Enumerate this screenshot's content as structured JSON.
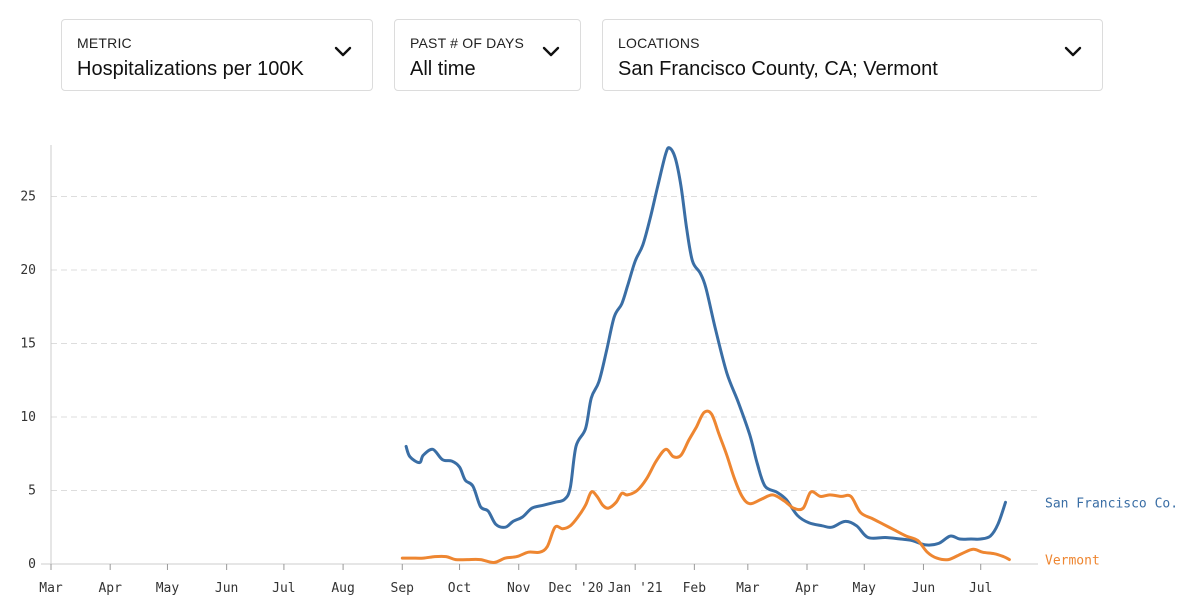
{
  "controls": {
    "metric": {
      "label": "METRIC",
      "value": "Hospitalizations per 100K"
    },
    "days": {
      "label": "PAST # OF DAYS",
      "value": "All time"
    },
    "locations": {
      "label": "LOCATIONS",
      "value": "San Francisco County, CA; Vermont"
    }
  },
  "colors": {
    "sf": "#3a6ea5",
    "vermont": "#ee8631",
    "grid": "#dddddd",
    "axis": "#cccccc"
  },
  "chart_data": {
    "type": "line",
    "title": "",
    "xlabel": "",
    "ylabel": "",
    "ylim": [
      0,
      28.5
    ],
    "yticks": [
      0,
      5,
      10,
      15,
      20,
      25
    ],
    "grid": true,
    "legend": "end-of-line labels",
    "x_ticks": [
      {
        "label": "Mar",
        "date": "2020-03-01"
      },
      {
        "label": "Apr",
        "date": "2020-04-01"
      },
      {
        "label": "May",
        "date": "2020-05-01"
      },
      {
        "label": "Jun",
        "date": "2020-06-01"
      },
      {
        "label": "Jul",
        "date": "2020-07-01"
      },
      {
        "label": "Aug",
        "date": "2020-08-01"
      },
      {
        "label": "Sep",
        "date": "2020-09-01"
      },
      {
        "label": "Oct",
        "date": "2020-10-01"
      },
      {
        "label": "Nov",
        "date": "2020-11-01"
      },
      {
        "label": "Dec '20",
        "date": "2020-12-01"
      },
      {
        "label": "Jan '21",
        "date": "2021-01-01"
      },
      {
        "label": "Feb",
        "date": "2021-02-01"
      },
      {
        "label": "Mar",
        "date": "2021-03-01"
      },
      {
        "label": "Apr",
        "date": "2021-04-01"
      },
      {
        "label": "May",
        "date": "2021-05-01"
      },
      {
        "label": "Jun",
        "date": "2021-06-01"
      },
      {
        "label": "Jul",
        "date": "2021-07-01"
      }
    ],
    "series": [
      {
        "name": "San Francisco Co.",
        "points": [
          [
            "2020-09-03",
            8.0
          ],
          [
            "2020-09-05",
            7.3
          ],
          [
            "2020-09-10",
            6.9
          ],
          [
            "2020-09-12",
            7.4
          ],
          [
            "2020-09-17",
            7.8
          ],
          [
            "2020-09-22",
            7.1
          ],
          [
            "2020-09-27",
            7.0
          ],
          [
            "2020-10-01",
            6.6
          ],
          [
            "2020-10-04",
            5.7
          ],
          [
            "2020-10-08",
            5.3
          ],
          [
            "2020-10-12",
            3.9
          ],
          [
            "2020-10-16",
            3.6
          ],
          [
            "2020-10-20",
            2.7
          ],
          [
            "2020-10-25",
            2.5
          ],
          [
            "2020-10-29",
            2.9
          ],
          [
            "2020-11-03",
            3.2
          ],
          [
            "2020-11-08",
            3.8
          ],
          [
            "2020-11-14",
            4.0
          ],
          [
            "2020-11-20",
            4.2
          ],
          [
            "2020-11-25",
            4.4
          ],
          [
            "2020-11-28",
            5.2
          ],
          [
            "2020-12-01",
            8.0
          ],
          [
            "2020-12-06",
            9.2
          ],
          [
            "2020-12-09",
            11.3
          ],
          [
            "2020-12-13",
            12.4
          ],
          [
            "2020-12-17",
            14.5
          ],
          [
            "2020-12-21",
            16.8
          ],
          [
            "2020-12-25",
            17.7
          ],
          [
            "2020-12-28",
            18.9
          ],
          [
            "2021-01-01",
            20.6
          ],
          [
            "2021-01-05",
            21.7
          ],
          [
            "2021-01-09",
            23.6
          ],
          [
            "2021-01-13",
            25.8
          ],
          [
            "2021-01-17",
            27.9
          ],
          [
            "2021-01-19",
            28.3
          ],
          [
            "2021-01-22",
            27.6
          ],
          [
            "2021-01-25",
            25.7
          ],
          [
            "2021-01-28",
            22.8
          ],
          [
            "2021-01-31",
            20.6
          ],
          [
            "2021-02-04",
            19.8
          ],
          [
            "2021-02-07",
            18.8
          ],
          [
            "2021-02-12",
            16.0
          ],
          [
            "2021-02-18",
            13.0
          ],
          [
            "2021-02-24",
            11.0
          ],
          [
            "2021-03-02",
            8.8
          ],
          [
            "2021-03-06",
            6.8
          ],
          [
            "2021-03-10",
            5.3
          ],
          [
            "2021-03-16",
            4.9
          ],
          [
            "2021-03-21",
            4.4
          ],
          [
            "2021-03-27",
            3.3
          ],
          [
            "2021-04-02",
            2.8
          ],
          [
            "2021-04-09",
            2.6
          ],
          [
            "2021-04-14",
            2.5
          ],
          [
            "2021-04-21",
            2.9
          ],
          [
            "2021-04-27",
            2.6
          ],
          [
            "2021-05-03",
            1.8
          ],
          [
            "2021-05-12",
            1.8
          ],
          [
            "2021-05-20",
            1.7
          ],
          [
            "2021-05-26",
            1.6
          ],
          [
            "2021-06-02",
            1.3
          ],
          [
            "2021-06-09",
            1.4
          ],
          [
            "2021-06-15",
            1.9
          ],
          [
            "2021-06-20",
            1.7
          ],
          [
            "2021-06-26",
            1.7
          ],
          [
            "2021-07-01",
            1.7
          ],
          [
            "2021-07-06",
            1.9
          ],
          [
            "2021-07-10",
            2.7
          ],
          [
            "2021-07-14",
            4.2
          ]
        ]
      },
      {
        "name": "Vermont",
        "points": [
          [
            "2020-09-01",
            0.4
          ],
          [
            "2020-09-06",
            0.4
          ],
          [
            "2020-09-12",
            0.4
          ],
          [
            "2020-09-18",
            0.5
          ],
          [
            "2020-09-24",
            0.5
          ],
          [
            "2020-09-29",
            0.3
          ],
          [
            "2020-10-05",
            0.3
          ],
          [
            "2020-10-12",
            0.3
          ],
          [
            "2020-10-19",
            0.1
          ],
          [
            "2020-10-25",
            0.4
          ],
          [
            "2020-10-31",
            0.5
          ],
          [
            "2020-11-06",
            0.8
          ],
          [
            "2020-11-12",
            0.8
          ],
          [
            "2020-11-16",
            1.2
          ],
          [
            "2020-11-20",
            2.5
          ],
          [
            "2020-11-24",
            2.4
          ],
          [
            "2020-11-28",
            2.6
          ],
          [
            "2020-12-02",
            3.2
          ],
          [
            "2020-12-06",
            4.0
          ],
          [
            "2020-12-09",
            4.9
          ],
          [
            "2020-12-12",
            4.6
          ],
          [
            "2020-12-15",
            4.0
          ],
          [
            "2020-12-18",
            3.8
          ],
          [
            "2020-12-22",
            4.2
          ],
          [
            "2020-12-25",
            4.8
          ],
          [
            "2020-12-28",
            4.7
          ],
          [
            "2021-01-02",
            5.0
          ],
          [
            "2021-01-07",
            5.8
          ],
          [
            "2021-01-12",
            7.0
          ],
          [
            "2021-01-17",
            7.8
          ],
          [
            "2021-01-21",
            7.3
          ],
          [
            "2021-01-25",
            7.4
          ],
          [
            "2021-01-29",
            8.4
          ],
          [
            "2021-02-02",
            9.3
          ],
          [
            "2021-02-06",
            10.3
          ],
          [
            "2021-02-10",
            10.2
          ],
          [
            "2021-02-14",
            8.8
          ],
          [
            "2021-02-18",
            7.4
          ],
          [
            "2021-02-22",
            5.8
          ],
          [
            "2021-02-26",
            4.6
          ],
          [
            "2021-03-02",
            4.1
          ],
          [
            "2021-03-08",
            4.4
          ],
          [
            "2021-03-14",
            4.7
          ],
          [
            "2021-03-20",
            4.3
          ],
          [
            "2021-03-25",
            3.8
          ],
          [
            "2021-03-30",
            3.8
          ],
          [
            "2021-04-03",
            4.9
          ],
          [
            "2021-04-08",
            4.6
          ],
          [
            "2021-04-13",
            4.7
          ],
          [
            "2021-04-19",
            4.6
          ],
          [
            "2021-04-24",
            4.6
          ],
          [
            "2021-04-29",
            3.5
          ],
          [
            "2021-05-05",
            3.1
          ],
          [
            "2021-05-11",
            2.7
          ],
          [
            "2021-05-17",
            2.3
          ],
          [
            "2021-05-23",
            1.9
          ],
          [
            "2021-05-29",
            1.6
          ],
          [
            "2021-06-03",
            0.8
          ],
          [
            "2021-06-08",
            0.4
          ],
          [
            "2021-06-14",
            0.3
          ],
          [
            "2021-06-21",
            0.7
          ],
          [
            "2021-06-27",
            1.0
          ],
          [
            "2021-07-02",
            0.8
          ],
          [
            "2021-07-08",
            0.7
          ],
          [
            "2021-07-13",
            0.5
          ],
          [
            "2021-07-16",
            0.3
          ]
        ]
      }
    ]
  }
}
